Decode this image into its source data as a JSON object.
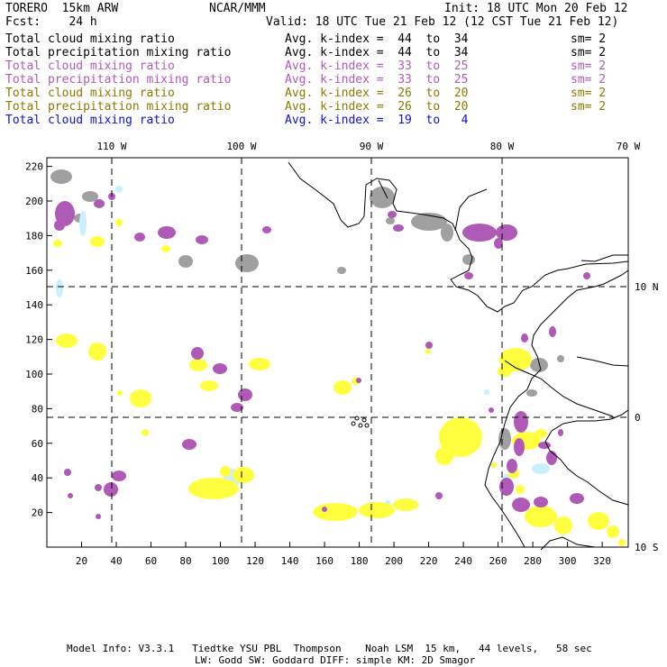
{
  "header": {
    "model": "TORERO  15km ARW",
    "org": "NCAR/MMM",
    "init": "Init: 18 UTC Mon 20 Feb 12",
    "fcst": "Fcst:    24 h",
    "valid": "Valid: 18 UTC Tue 21 Feb 12 (12 CST Tue 21 Feb 12)"
  },
  "legend": [
    {
      "field": "Total cloud mixing ratio",
      "kindex": "Avg. k-index =  44  to  34",
      "sm": "sm= 2",
      "color": "#000000"
    },
    {
      "field": "Total precipitation mixing ratio",
      "kindex": "Avg. k-index =  44  to  34",
      "sm": "sm= 2",
      "color": "#000000"
    },
    {
      "field": "Total cloud mixing ratio",
      "kindex": "Avg. k-index =  33  to  25",
      "sm": "sm= 2",
      "color": "#b05ab8"
    },
    {
      "field": "Total precipitation mixing ratio",
      "kindex": "Avg. k-index =  33  to  25",
      "sm": "sm= 2",
      "color": "#b05ab8"
    },
    {
      "field": "Total cloud mixing ratio",
      "kindex": "Avg. k-index =  26  to  20",
      "sm": "sm= 2",
      "color": "#8a7a00"
    },
    {
      "field": "Total precipitation mixing ratio",
      "kindex": "Avg. k-index =  26  to  20",
      "sm": "sm= 2",
      "color": "#8a7a00"
    },
    {
      "field": "Total cloud mixing ratio",
      "kindex": "Avg. k-index =  19  to   4",
      "sm": "",
      "color": "#1010d0"
    }
  ],
  "map": {
    "lon_labels": [
      "110 W",
      "100 W",
      "90 W",
      "80 W",
      "70 W"
    ],
    "lat_labels": [
      "10 N",
      "0",
      "10 S"
    ],
    "x_ticks": [
      "20",
      "40",
      "60",
      "80",
      "100",
      "120",
      "140",
      "160",
      "180",
      "200",
      "220",
      "240",
      "260",
      "280",
      "300",
      "320"
    ],
    "y_ticks": [
      "220",
      "200",
      "180",
      "160",
      "140",
      "120",
      "100",
      "80",
      "60",
      "40",
      "20"
    ],
    "grid_x_range": [
      0,
      335
    ],
    "grid_y_range": [
      0,
      225
    ]
  },
  "colors": {
    "gray": "#a0a0a0",
    "purple": "#b05ab8",
    "yellow": "#ffff40",
    "cyan": "#c8f0ff",
    "coast": "#000000"
  },
  "footer": {
    "line1": "Model Info: V3.3.1   Tiedtke YSU PBL  Thompson    Noah LSM  15 km,   44 levels,   58 sec",
    "line2": "LW: Godd SW: Goddard DIFF: simple KM: 2D Smagor"
  }
}
